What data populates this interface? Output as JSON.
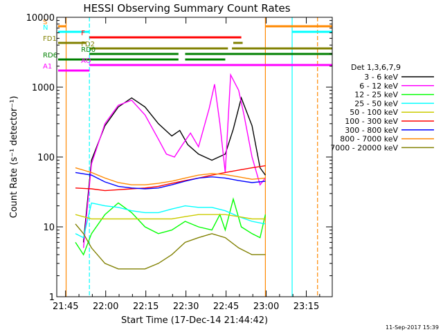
{
  "chart_data": {
    "type": "line",
    "title": "HESSI Observing Summary Count Rates",
    "xlabel": "Start Time (17-Dec-14 21:44:42)",
    "ylabel": "Count Rate (s⁻¹ detector⁻¹)",
    "x_ticks": [
      "21:45",
      "22:00",
      "22:15",
      "22:30",
      "22:45",
      "23:00",
      "23:15"
    ],
    "x_tick_minutes": [
      0.3,
      15.3,
      30.3,
      45.3,
      60.3,
      75.3,
      90.3
    ],
    "xlim_minutes": [
      -3.0,
      100.0
    ],
    "y_scale": "log",
    "ylim": [
      1,
      10000
    ],
    "y_ticks": [
      "1",
      "10",
      "100",
      "1000",
      "10000"
    ],
    "y_tick_values": [
      1,
      10,
      100,
      1000,
      10000
    ],
    "legend_title": "Det 1,3,6,7,9",
    "legend_position": "right",
    "timestamp": "11-Sep-2017 15:39",
    "series": [
      {
        "name": "3 - 6 keV",
        "color": "#000000",
        "x": [
          7,
          10,
          15,
          20,
          25,
          30,
          35,
          40,
          43,
          46,
          50,
          55,
          60,
          63,
          66,
          70,
          73,
          75
        ],
        "y": [
          6,
          90,
          280,
          520,
          700,
          520,
          300,
          200,
          240,
          150,
          110,
          90,
          110,
          250,
          700,
          280,
          70,
          55
        ]
      },
      {
        "name": "6 - 12 keV",
        "color": "#ff00ff",
        "x": [
          7,
          10,
          15,
          20,
          25,
          30,
          35,
          38,
          41,
          44,
          47,
          50,
          54,
          56,
          58,
          60,
          62,
          65,
          67,
          70,
          73,
          75
        ],
        "y": [
          5,
          80,
          300,
          550,
          650,
          400,
          180,
          110,
          100,
          150,
          220,
          140,
          500,
          1100,
          300,
          60,
          1500,
          900,
          400,
          100,
          40,
          50
        ]
      },
      {
        "name": "12 - 25 keV",
        "color": "#00ff00",
        "x": [
          4,
          7,
          10,
          15,
          20,
          25,
          30,
          35,
          40,
          45,
          50,
          55,
          58,
          60,
          63,
          66,
          70,
          73,
          75
        ],
        "y": [
          6,
          4,
          8,
          15,
          22,
          16,
          10,
          8,
          9,
          12,
          10,
          9,
          15,
          9,
          25,
          10,
          8,
          7,
          15
        ]
      },
      {
        "name": "25 - 50 keV",
        "color": "#00ffff",
        "x": [
          4,
          7,
          10,
          15,
          20,
          25,
          30,
          35,
          40,
          45,
          50,
          55,
          60,
          65,
          70,
          75
        ],
        "y": [
          8,
          7,
          22,
          20,
          19,
          17,
          16,
          16,
          18,
          20,
          19,
          19,
          17,
          14,
          12,
          11
        ]
      },
      {
        "name": "50 - 100 keV",
        "color": "#cccc00",
        "x": [
          4,
          10,
          15,
          20,
          25,
          30,
          35,
          40,
          45,
          50,
          55,
          60,
          65,
          70,
          75
        ],
        "y": [
          15,
          13,
          13,
          13,
          13,
          13,
          13,
          13,
          14,
          15,
          15,
          15,
          14,
          13,
          13
        ]
      },
      {
        "name": "100 - 300 keV",
        "color": "#ff0000",
        "x": [
          4,
          10,
          15,
          20,
          25,
          30,
          35,
          40,
          45,
          50,
          55,
          60,
          65,
          70,
          75
        ],
        "y": [
          36,
          35,
          33,
          34,
          35,
          36,
          38,
          42,
          46,
          50,
          55,
          60,
          65,
          70,
          75
        ]
      },
      {
        "name": "300 - 800 keV",
        "color": "#0000ff",
        "x": [
          4,
          10,
          15,
          20,
          25,
          30,
          35,
          40,
          45,
          50,
          55,
          60,
          65,
          70,
          75
        ],
        "y": [
          60,
          55,
          44,
          38,
          36,
          35,
          36,
          40,
          45,
          50,
          52,
          50,
          46,
          43,
          45
        ]
      },
      {
        "name": "800 - 7000 keV",
        "color": "#ff8800",
        "x": [
          4,
          10,
          15,
          20,
          25,
          30,
          35,
          40,
          45,
          50,
          55,
          60,
          65,
          70,
          75
        ],
        "y": [
          70,
          60,
          50,
          43,
          40,
          40,
          42,
          45,
          50,
          55,
          58,
          56,
          52,
          48,
          50
        ]
      },
      {
        "name": "7000 - 20000 keV",
        "color": "#808000",
        "x": [
          4,
          7,
          10,
          15,
          20,
          25,
          30,
          35,
          40,
          45,
          50,
          55,
          60,
          65,
          70,
          75
        ],
        "y": [
          11,
          8,
          5,
          3,
          2.5,
          2.5,
          2.5,
          3,
          4,
          6,
          7,
          8,
          7,
          5,
          4,
          4
        ]
      }
    ],
    "flags": [
      {
        "label": "S",
        "color": "#ff8800",
        "segments": [
          [
            -2.5,
            0.5
          ],
          [
            75,
            100
          ]
        ]
      },
      {
        "label": "N",
        "color": "#00ffff",
        "segments": [
          [
            -2.5,
            9.2
          ],
          [
            85,
            100
          ]
        ]
      },
      {
        "label": "F",
        "color": "#ff0000",
        "segments": [
          [
            9.2,
            66
          ]
        ]
      },
      {
        "label": "FD1",
        "color": "#808000",
        "segments": [
          [
            -2.5,
            8
          ],
          [
            63,
            66.5
          ]
        ]
      },
      {
        "label": "FD2",
        "color": "#808000",
        "segments": [
          [
            9.2,
            61
          ],
          [
            62.5,
            100
          ]
        ]
      },
      {
        "label": "RD0",
        "color": "#008000",
        "segments": [
          [
            9.2,
            42.5
          ],
          [
            45,
            100
          ]
        ]
      },
      {
        "label": "RD6",
        "color": "#008000",
        "segments": [
          [
            -2.5,
            42.5
          ],
          [
            45,
            60
          ]
        ]
      },
      {
        "label": "AO",
        "color": "#ff00ff",
        "segments": [
          [
            9.2,
            100
          ]
        ]
      },
      {
        "label": "A1",
        "color": "#ff00ff",
        "segments": [
          [
            -2.5,
            9.2
          ]
        ]
      }
    ],
    "vlines": [
      {
        "minute": 0.5,
        "color": "#ff8800"
      },
      {
        "minute": 9.2,
        "color": "#00ffff"
      },
      {
        "minute": 75,
        "color": "#ff8800"
      },
      {
        "minute": 85,
        "color": "#00ffff"
      },
      {
        "minute": 94.5,
        "color": "#ff8800"
      }
    ]
  }
}
